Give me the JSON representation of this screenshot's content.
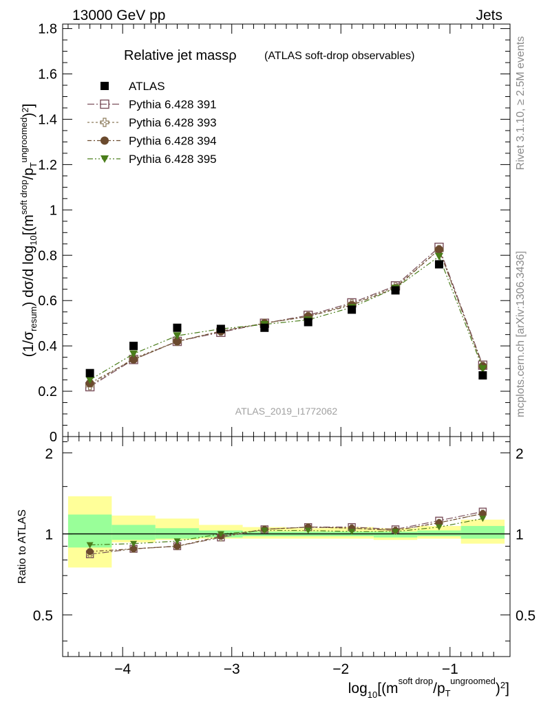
{
  "header": {
    "left": "13000 GeV pp",
    "right": "Jets"
  },
  "side_labels": {
    "rivet": "Rivet 3.1.10, ≥ 2.5M events",
    "mcplots": "mcplots.cern.ch [arXiv:1306.3436]"
  },
  "colors": {
    "atlas": "#000000",
    "p391": "#7a4f5b",
    "p393": "#8c7a5a",
    "p394": "#6b4a2e",
    "p395": "#4a7d1a",
    "band_inner": "#99ff99",
    "band_outer": "#ffff99"
  },
  "chart_data": [
    {
      "type": "line",
      "title_main": "Relative jet massρ",
      "title_sub": "(ATLAS soft-drop observables)",
      "watermark": "ATLAS_2019_I1772062",
      "ylabel": "(1/σresum) dσ/d log10[(m soft drop/pT ungroomed)2]",
      "xlabel": "log10[(m soft drop/pT ungroomed)2]",
      "xlim": [
        -4.55,
        -0.45
      ],
      "ylim": [
        0,
        1.82
      ],
      "x_ticks": [
        -4,
        -3,
        -2,
        -1
      ],
      "x_tick_labels": [
        "−4",
        "−3",
        "−2",
        "−1"
      ],
      "y_ticks": [
        0,
        0.2,
        0.4,
        0.6,
        0.8,
        1,
        1.2,
        1.4,
        1.6,
        1.8
      ],
      "y_tick_labels": [
        "0",
        "0.2",
        "0.4",
        "0.6",
        "0.8",
        "1",
        "1.2",
        "1.4",
        "1.6",
        "1.8"
      ],
      "x": [
        -4.3,
        -3.9,
        -3.5,
        -3.1,
        -2.7,
        -2.3,
        -1.9,
        -1.5,
        -1.1,
        -0.7
      ],
      "series": [
        {
          "name": "ATLAS",
          "key": "atlas",
          "marker": "square-filled",
          "values": [
            0.28,
            0.4,
            0.48,
            0.475,
            0.48,
            0.505,
            0.56,
            0.645,
            0.76,
            0.27
          ]
        },
        {
          "name": "Pythia 6.428 391",
          "key": "p391",
          "marker": "square-open",
          "values": [
            0.22,
            0.34,
            0.42,
            0.46,
            0.5,
            0.535,
            0.59,
            0.665,
            0.835,
            0.315
          ]
        },
        {
          "name": "Pythia 6.428 393",
          "key": "p393",
          "marker": "cross-open",
          "values": [
            0.225,
            0.345,
            0.42,
            0.465,
            0.5,
            0.53,
            0.585,
            0.66,
            0.825,
            0.31
          ]
        },
        {
          "name": "Pythia 6.428 394",
          "key": "p394",
          "marker": "circle",
          "values": [
            0.235,
            0.34,
            0.42,
            0.465,
            0.5,
            0.53,
            0.58,
            0.655,
            0.825,
            0.31
          ]
        },
        {
          "name": "Pythia 6.428 395",
          "key": "p395",
          "marker": "triangle-down",
          "values": [
            0.25,
            0.365,
            0.445,
            0.475,
            0.495,
            0.515,
            0.57,
            0.655,
            0.795,
            0.3
          ]
        }
      ]
    },
    {
      "type": "line",
      "ylabel": "Ratio to ATLAS",
      "xlabel": "log10[(m soft drop/pT ungroomed)2]",
      "xlim": [
        -4.55,
        -0.45
      ],
      "ylim": [
        0.35,
        2.3
      ],
      "y_ticks": [
        0.5,
        1,
        2
      ],
      "y_tick_labels": [
        "0.5",
        "1",
        "2"
      ],
      "x": [
        -4.3,
        -3.9,
        -3.5,
        -3.1,
        -2.7,
        -2.3,
        -1.9,
        -1.5,
        -1.1,
        -0.7
      ],
      "bins": [
        [
          -4.5,
          -4.1
        ],
        [
          -4.1,
          -3.7
        ],
        [
          -3.7,
          -3.3
        ],
        [
          -3.3,
          -2.9
        ],
        [
          -2.9,
          -2.5
        ],
        [
          -2.5,
          -2.1
        ],
        [
          -2.1,
          -1.7
        ],
        [
          -1.7,
          -1.3
        ],
        [
          -1.3,
          -0.9
        ],
        [
          -0.9,
          -0.5
        ]
      ],
      "band_inner": [
        [
          0.89,
          1.18
        ],
        [
          0.95,
          1.08
        ],
        [
          0.96,
          1.05
        ],
        [
          0.97,
          1.03
        ],
        [
          0.98,
          1.02
        ],
        [
          0.98,
          1.02
        ],
        [
          0.98,
          1.02
        ],
        [
          0.97,
          1.02
        ],
        [
          0.98,
          1.03
        ],
        [
          0.96,
          1.07
        ]
      ],
      "band_outer": [
        [
          0.75,
          1.38
        ],
        [
          0.93,
          1.17
        ],
        [
          0.95,
          1.14
        ],
        [
          0.96,
          1.08
        ],
        [
          0.96,
          1.06
        ],
        [
          0.96,
          1.05
        ],
        [
          0.96,
          1.06
        ],
        [
          0.95,
          1.05
        ],
        [
          0.96,
          1.07
        ],
        [
          0.92,
          1.13
        ]
      ],
      "series": [
        {
          "name": "Pythia 6.428 391",
          "key": "p391",
          "marker": "square-open",
          "values": [
            0.84,
            0.88,
            0.9,
            0.97,
            1.04,
            1.06,
            1.06,
            1.04,
            1.12,
            1.21
          ]
        },
        {
          "name": "Pythia 6.428 393",
          "key": "p393",
          "marker": "cross-open",
          "values": [
            0.84,
            0.88,
            0.9,
            0.97,
            1.04,
            1.06,
            1.05,
            1.03,
            1.1,
            1.19
          ]
        },
        {
          "name": "Pythia 6.428 394",
          "key": "p394",
          "marker": "circle",
          "values": [
            0.86,
            0.88,
            0.9,
            0.98,
            1.04,
            1.06,
            1.05,
            1.03,
            1.1,
            1.19
          ]
        },
        {
          "name": "Pythia 6.428 395",
          "key": "p395",
          "marker": "triangle-down",
          "values": [
            0.91,
            0.92,
            0.94,
            1.0,
            1.03,
            1.03,
            1.02,
            1.02,
            1.06,
            1.14
          ]
        }
      ]
    }
  ]
}
